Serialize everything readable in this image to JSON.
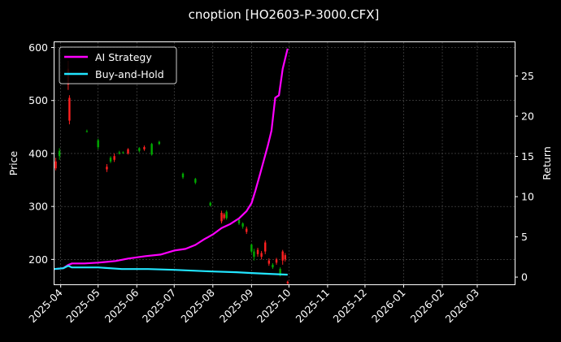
{
  "chart_data": {
    "type": "candlestick+line",
    "title": "cnoption [HO2603-P-3000.CFX]",
    "ylabel": "Price",
    "y2label": "Return",
    "ylim": [
      153,
      610
    ],
    "y2lim": [
      -0.9,
      29.2
    ],
    "yticks": [
      "200",
      "300",
      "400",
      "500",
      "600"
    ],
    "y2ticks": [
      "0",
      "5",
      "10",
      "15",
      "20",
      "25"
    ],
    "xlim": [
      "2025-03-27",
      "2026-03-31"
    ],
    "xticks": [
      "2025-04",
      "2025-05",
      "2025-06",
      "2025-07",
      "2025-08",
      "2025-09",
      "2025-10",
      "2025-11",
      "2025-12",
      "2026-01",
      "2026-02",
      "2026-03"
    ],
    "grid": true,
    "legend_placement": "top-left",
    "colors": {
      "up": "#00aa00",
      "down": "#ff2020",
      "ai": "#ff00ff",
      "bh": "#22e5ff",
      "grid": "#555555"
    },
    "series": [
      {
        "name": "AI Strategy",
        "axis": "right",
        "color": "#ff00ff",
        "points": [
          [
            "2025-03-27",
            1.0
          ],
          [
            "2025-04-03",
            1.1
          ],
          [
            "2025-04-07",
            1.5
          ],
          [
            "2025-04-10",
            1.7
          ],
          [
            "2025-04-20",
            1.7
          ],
          [
            "2025-05-01",
            1.8
          ],
          [
            "2025-05-15",
            2.0
          ],
          [
            "2025-05-25",
            2.3
          ],
          [
            "2025-06-08",
            2.6
          ],
          [
            "2025-06-20",
            2.8
          ],
          [
            "2025-07-01",
            3.3
          ],
          [
            "2025-07-10",
            3.5
          ],
          [
            "2025-07-18",
            4.0
          ],
          [
            "2025-07-25",
            4.7
          ],
          [
            "2025-08-01",
            5.3
          ],
          [
            "2025-08-08",
            6.1
          ],
          [
            "2025-08-15",
            6.6
          ],
          [
            "2025-08-22",
            7.3
          ],
          [
            "2025-08-28",
            8.2
          ],
          [
            "2025-09-01",
            9.2
          ],
          [
            "2025-09-04",
            10.7
          ],
          [
            "2025-09-08",
            12.9
          ],
          [
            "2025-09-11",
            14.6
          ],
          [
            "2025-09-14",
            16.3
          ],
          [
            "2025-09-17",
            18.2
          ],
          [
            "2025-09-20",
            22.3
          ],
          [
            "2025-09-23",
            22.6
          ],
          [
            "2025-09-26",
            25.9
          ],
          [
            "2025-09-29",
            27.8
          ],
          [
            "2025-09-30",
            28.4
          ]
        ]
      },
      {
        "name": "Buy-and-Hold",
        "axis": "right",
        "color": "#22e5ff",
        "points": [
          [
            "2025-03-27",
            1.0
          ],
          [
            "2025-04-03",
            1.1
          ],
          [
            "2025-04-07",
            1.4
          ],
          [
            "2025-04-10",
            1.2
          ],
          [
            "2025-05-01",
            1.2
          ],
          [
            "2025-05-20",
            1.0
          ],
          [
            "2025-06-10",
            1.0
          ],
          [
            "2025-07-01",
            0.9
          ],
          [
            "2025-08-01",
            0.7
          ],
          [
            "2025-08-20",
            0.6
          ],
          [
            "2025-09-01",
            0.5
          ],
          [
            "2025-09-15",
            0.4
          ],
          [
            "2025-09-30",
            0.3
          ]
        ]
      }
    ],
    "candles": [
      [
        "2025-03-28",
        385,
        372,
        392,
        368
      ],
      [
        "2025-03-31",
        395,
        405,
        410,
        388
      ],
      [
        "2025-04-07",
        560,
        530,
        575,
        520
      ],
      [
        "2025-04-08",
        505,
        462,
        510,
        455
      ],
      [
        "2025-04-22",
        442,
        442,
        445,
        440
      ],
      [
        "2025-05-01",
        412,
        425,
        428,
        408
      ],
      [
        "2025-05-08",
        375,
        370,
        380,
        365
      ],
      [
        "2025-05-11",
        385,
        392,
        395,
        382
      ],
      [
        "2025-05-14",
        395,
        388,
        400,
        384
      ],
      [
        "2025-05-18",
        400,
        402,
        405,
        398
      ],
      [
        "2025-05-21",
        402,
        402,
        404,
        400
      ],
      [
        "2025-05-25",
        408,
        400,
        410,
        398
      ],
      [
        "2025-06-03",
        405,
        410,
        412,
        402
      ],
      [
        "2025-06-07",
        412,
        408,
        415,
        405
      ],
      [
        "2025-06-13",
        398,
        418,
        420,
        396
      ],
      [
        "2025-06-19",
        418,
        422,
        424,
        416
      ],
      [
        "2025-07-08",
        355,
        362,
        364,
        352
      ],
      [
        "2025-07-18",
        345,
        352,
        354,
        342
      ],
      [
        "2025-07-30",
        302,
        307,
        309,
        300
      ],
      [
        "2025-08-08",
        288,
        272,
        292,
        268
      ],
      [
        "2025-08-10",
        285,
        278,
        288,
        275
      ],
      [
        "2025-08-12",
        278,
        290,
        293,
        275
      ],
      [
        "2025-08-22",
        268,
        275,
        278,
        265
      ],
      [
        "2025-08-25",
        262,
        268,
        270,
        258
      ],
      [
        "2025-08-28",
        258,
        252,
        262,
        248
      ],
      [
        "2025-09-01",
        215,
        228,
        230,
        212
      ],
      [
        "2025-09-03",
        205,
        215,
        220,
        198
      ],
      [
        "2025-09-06",
        218,
        210,
        222,
        205
      ],
      [
        "2025-09-09",
        212,
        205,
        216,
        200
      ],
      [
        "2025-09-12",
        232,
        215,
        236,
        210
      ],
      [
        "2025-09-15",
        198,
        192,
        202,
        188
      ],
      [
        "2025-09-18",
        185,
        190,
        193,
        182
      ],
      [
        "2025-09-21",
        200,
        194,
        203,
        190
      ],
      [
        "2025-09-24",
        170,
        182,
        185,
        168
      ],
      [
        "2025-09-26",
        215,
        198,
        218,
        190
      ],
      [
        "2025-09-28",
        208,
        200,
        212,
        196
      ],
      [
        "2025-09-30",
        158,
        155,
        160,
        153
      ]
    ]
  }
}
